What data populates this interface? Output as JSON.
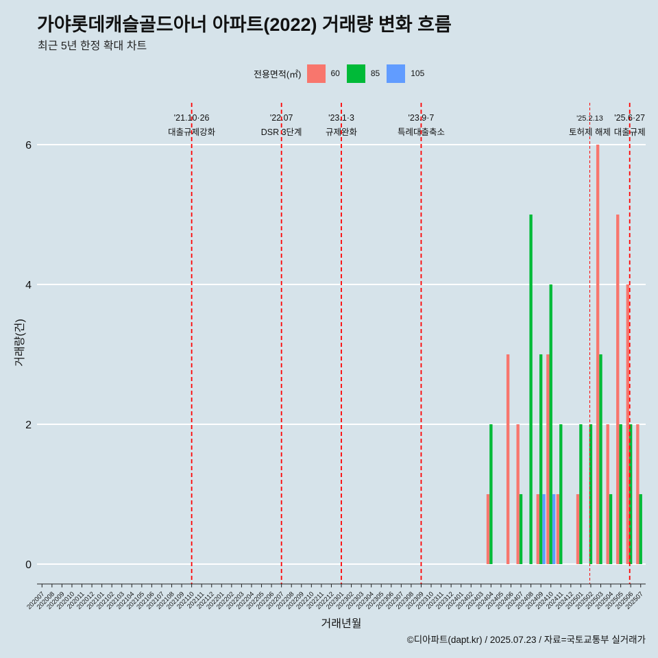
{
  "title": "가야롯데캐슬골드아너 아파트(2022) 거래량 변화 흐름",
  "subtitle": "최근 5년 한정 확대 차트",
  "legend": {
    "title": "전용면적(㎡)",
    "items": [
      "60",
      "85",
      "105"
    ]
  },
  "caption": "©디아파트(dapt.kr) / 2025.07.23 / 자료=국토교통부 실거래가",
  "colors": {
    "60": "#f8766d",
    "85": "#00ba38",
    "105": "#619cff",
    "background": "#d6e3ea",
    "event_line": "#ff0000"
  },
  "chart_data": {
    "type": "bar",
    "title": "가야롯데캐슬골드아너 아파트(2022) 거래량 변화 흐름",
    "subtitle": "최근 5년 한정 확대 차트",
    "xlabel": "거래년월",
    "ylabel": "거래량(건)",
    "ylim": [
      -0.45,
      6.7
    ],
    "yticks": [
      0,
      2,
      4,
      6
    ],
    "grid": true,
    "legend_position": "top",
    "categories": [
      "202007",
      "202008",
      "202009",
      "202010",
      "202011",
      "202012",
      "202101",
      "202102",
      "202103",
      "202104",
      "202105",
      "202106",
      "202107",
      "202108",
      "202109",
      "202110",
      "202111",
      "202112",
      "202201",
      "202202",
      "202203",
      "202204",
      "202205",
      "202206",
      "202207",
      "202208",
      "202209",
      "202210",
      "202211",
      "202212",
      "202301",
      "202302",
      "202303",
      "202304",
      "202305",
      "202306",
      "202307",
      "202308",
      "202309",
      "202310",
      "202311",
      "202312",
      "202401",
      "202402",
      "202403",
      "202404",
      "202405",
      "202406",
      "202407",
      "202408",
      "202409",
      "202410",
      "202411",
      "202412",
      "202501",
      "202502",
      "202503",
      "202504",
      "202505",
      "202506",
      "202507"
    ],
    "series": [
      {
        "name": "60",
        "values": [
          0,
          0,
          0,
          0,
          0,
          0,
          0,
          0,
          0,
          0,
          0,
          0,
          0,
          0,
          0,
          0,
          0,
          0,
          0,
          0,
          0,
          0,
          0,
          0,
          0,
          0,
          0,
          0,
          0,
          0,
          0,
          0,
          0,
          0,
          0,
          0,
          0,
          0,
          0,
          0,
          0,
          0,
          0,
          0,
          0,
          1,
          0,
          3,
          2,
          0,
          1,
          3,
          1,
          0,
          1,
          0,
          6,
          2,
          5,
          4,
          2
        ]
      },
      {
        "name": "85",
        "values": [
          0,
          0,
          0,
          0,
          0,
          0,
          0,
          0,
          0,
          0,
          0,
          0,
          0,
          0,
          0,
          0,
          0,
          0,
          0,
          0,
          0,
          0,
          0,
          0,
          0,
          0,
          0,
          0,
          0,
          0,
          0,
          0,
          0,
          0,
          0,
          0,
          0,
          0,
          0,
          0,
          0,
          0,
          0,
          0,
          0,
          2,
          0,
          0,
          1,
          5,
          3,
          4,
          2,
          0,
          2,
          2,
          3,
          1,
          2,
          2,
          1
        ]
      },
      {
        "name": "105",
        "values": [
          0,
          0,
          0,
          0,
          0,
          0,
          0,
          0,
          0,
          0,
          0,
          0,
          0,
          0,
          0,
          0,
          0,
          0,
          0,
          0,
          0,
          0,
          0,
          0,
          0,
          0,
          0,
          0,
          0,
          0,
          0,
          0,
          0,
          0,
          0,
          0,
          0,
          0,
          0,
          0,
          0,
          0,
          0,
          0,
          0,
          0,
          0,
          0,
          0,
          0,
          1,
          1,
          0,
          0,
          0,
          0,
          0,
          0,
          0,
          0,
          0
        ]
      }
    ],
    "events": [
      {
        "month": 15.5,
        "date": "'21.10·26",
        "label": "대출규제강화",
        "style": "dashed"
      },
      {
        "month": 24.5,
        "date": "'22.07",
        "label": "DSR 3단계",
        "style": "dashed"
      },
      {
        "month": 30.5,
        "date": "'23.1·3",
        "label": "규제완화",
        "style": "dashed"
      },
      {
        "month": 38.5,
        "date": "'23.9·7",
        "label": "특례대출축소",
        "style": "dashed"
      },
      {
        "month": 55.4,
        "date": "'25.2.13",
        "label": "토허제 해제",
        "style": "thin-dashed"
      },
      {
        "month": 59.4,
        "date": "'25.6·27",
        "label": "대출규제",
        "style": "dashed"
      }
    ]
  }
}
